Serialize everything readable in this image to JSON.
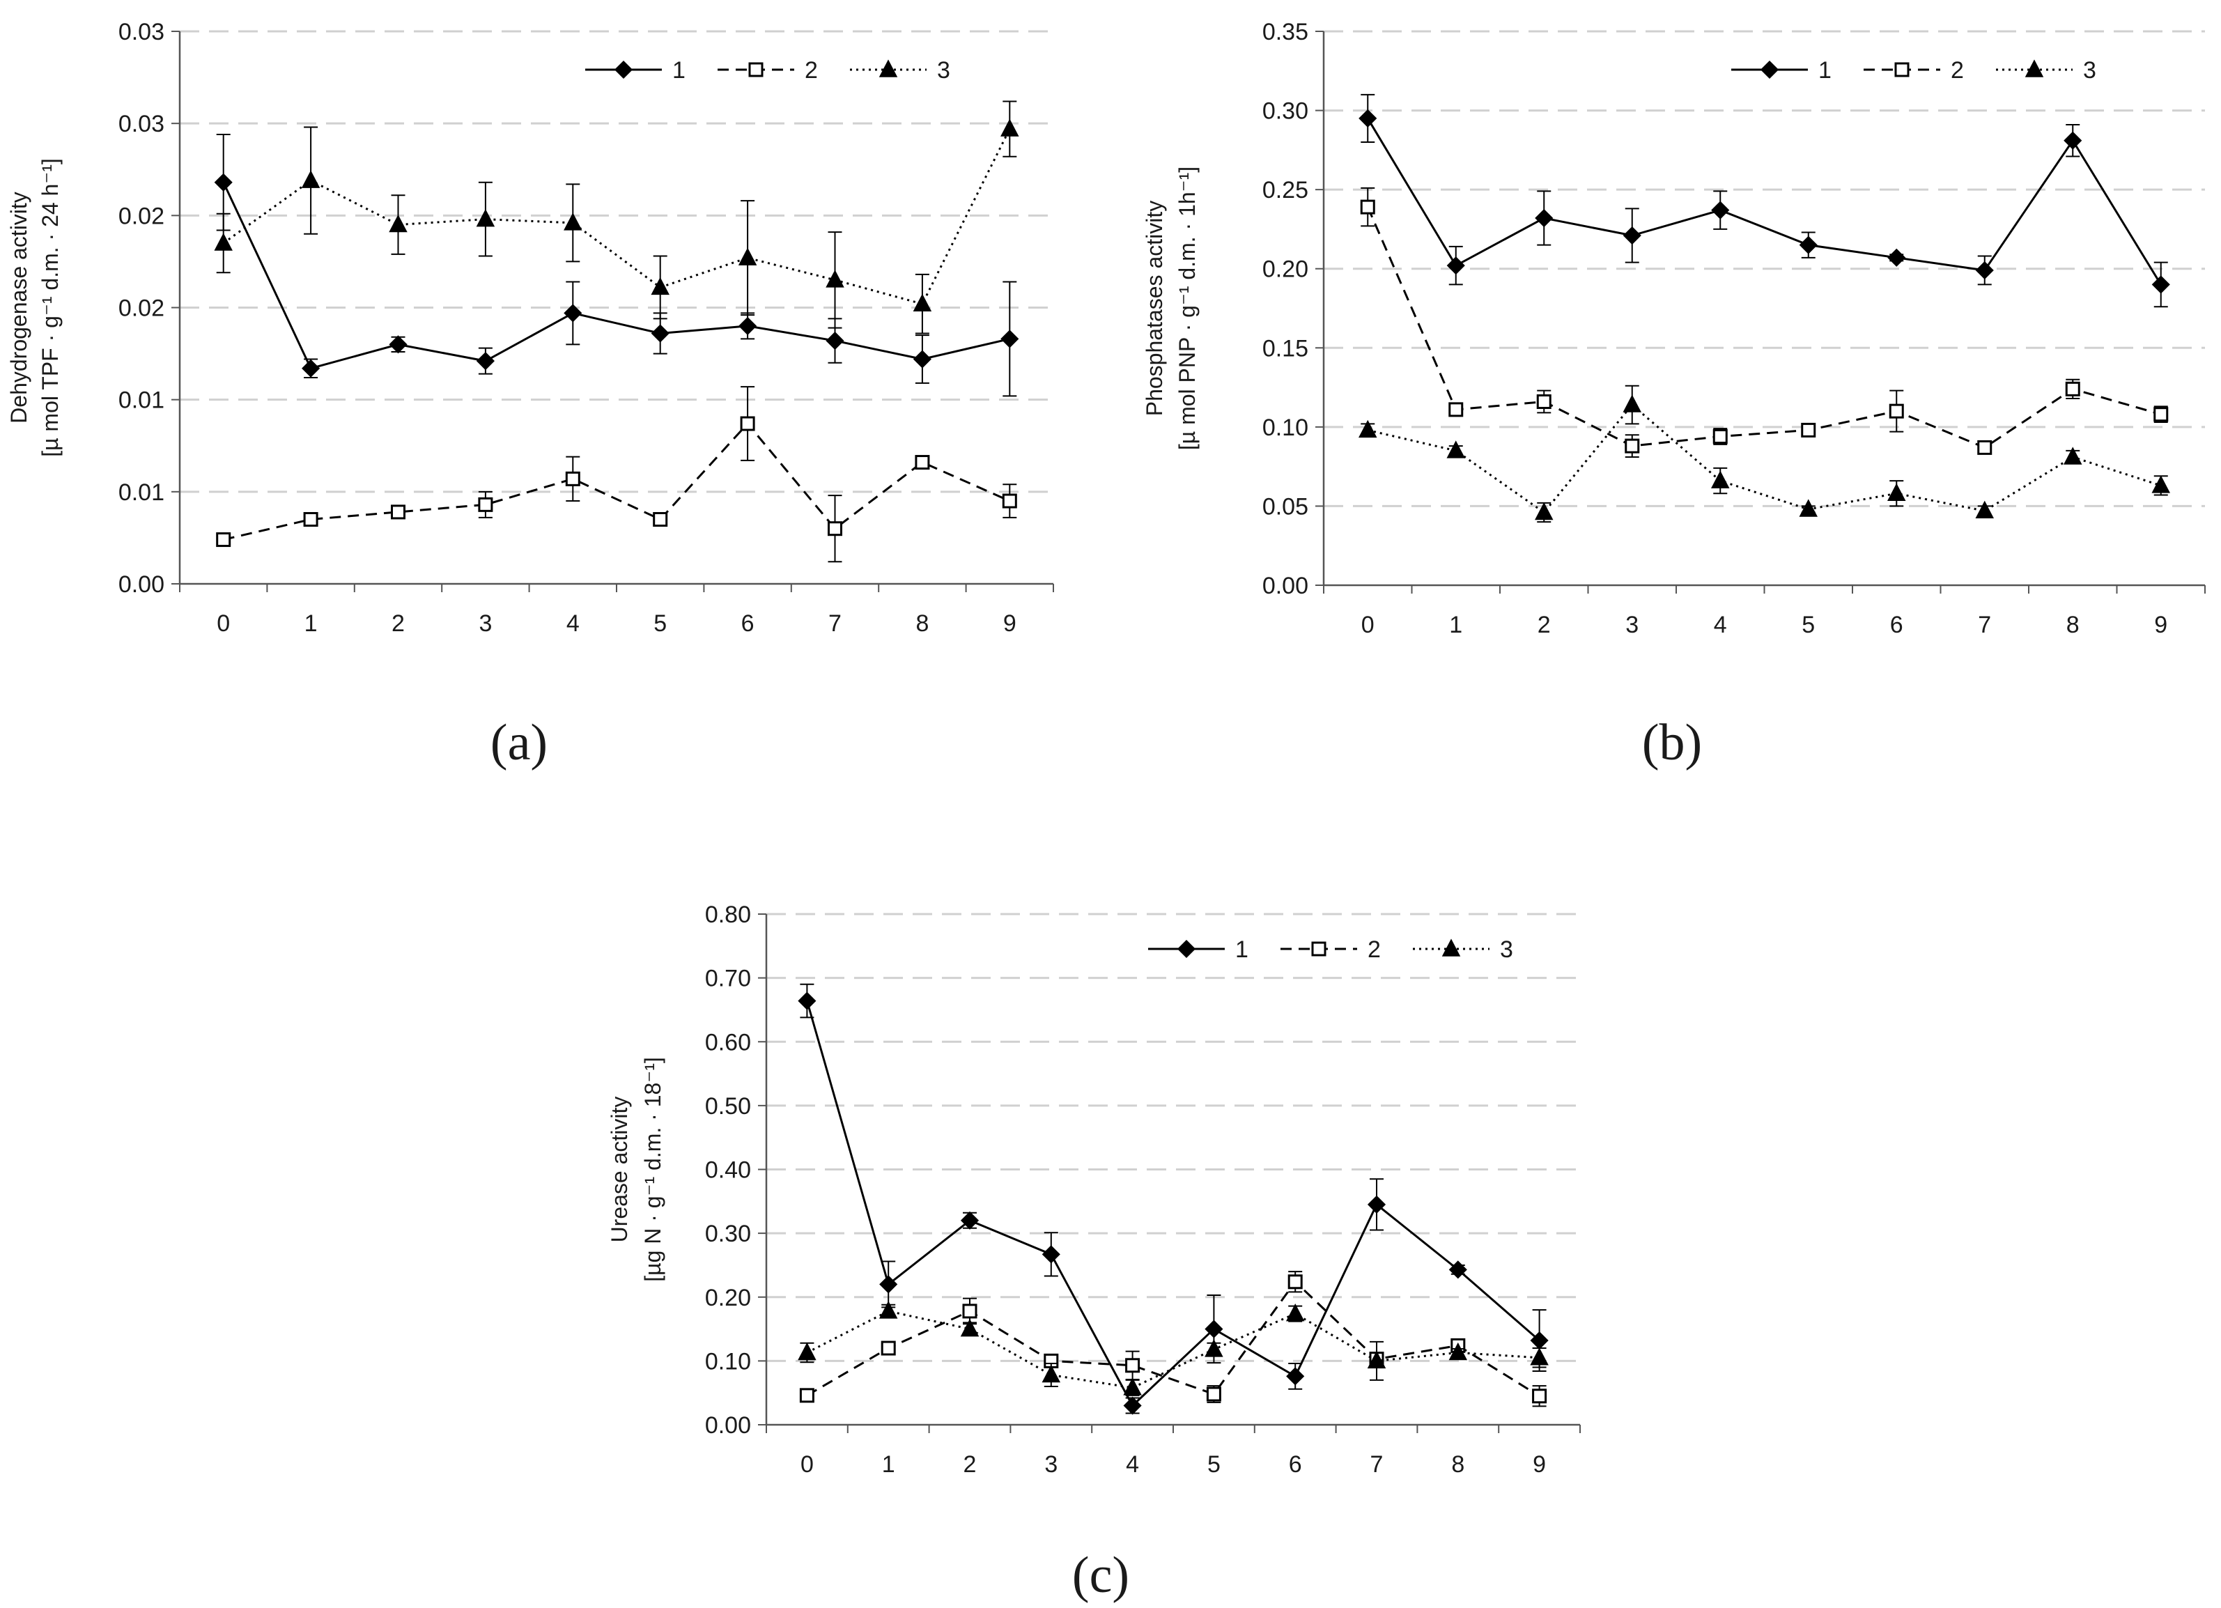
{
  "chart_data": [
    {
      "type": "line",
      "panel_label": "(a)",
      "ylabel_line1": "Dehydrogenase activity",
      "ylabel_line2": "[µ mol TPF · g⁻¹ d.m. · 24 h⁻¹]",
      "categories": [
        "0",
        "1",
        "2",
        "3",
        "4",
        "5",
        "6",
        "7",
        "8",
        "9"
      ],
      "ylim": [
        0,
        0.03
      ],
      "y_tick_values": [
        0,
        0.005,
        0.01,
        0.015,
        0.02,
        0.025,
        0.03
      ],
      "y_tick_labels": [
        "0.00",
        "0.01",
        "0.01",
        "0.02",
        "0.02",
        "0.03",
        "0.03"
      ],
      "grid": true,
      "legend_position": "top-right",
      "series": [
        {
          "name": "1",
          "style": "solid",
          "marker": "diamond-filled",
          "values": [
            0.0218,
            0.0117,
            0.013,
            0.0121,
            0.0147,
            0.0136,
            0.014,
            0.0132,
            0.0122,
            0.0133
          ],
          "errors": [
            0.0026,
            0.0005,
            0.0004,
            0.0007,
            0.0017,
            0.0011,
            0.0007,
            0.0012,
            0.0013,
            0.0031
          ]
        },
        {
          "name": "2",
          "style": "dashed",
          "marker": "square-open",
          "values": [
            0.0024,
            0.0035,
            0.0039,
            0.0043,
            0.0057,
            0.0035,
            0.0087,
            0.003,
            0.0066,
            0.0045
          ],
          "errors": [
            0.0003,
            0.0003,
            0.0003,
            0.0007,
            0.0012,
            0.0002,
            0.002,
            0.0018,
            0.0003,
            0.0009
          ]
        },
        {
          "name": "3",
          "style": "dotted",
          "marker": "triangle-filled",
          "values": [
            0.0185,
            0.0219,
            0.0195,
            0.0198,
            0.0196,
            0.0161,
            0.0177,
            0.0165,
            0.0152,
            0.0247
          ],
          "errors": [
            0.0016,
            0.0029,
            0.0016,
            0.002,
            0.0021,
            0.0017,
            0.0031,
            0.0026,
            0.0016,
            0.0015
          ]
        }
      ]
    },
    {
      "type": "line",
      "panel_label": "(b)",
      "ylabel_line1": "Phosphatases activity",
      "ylabel_line2": "[µ mol PNP · g⁻¹ d.m. · 1h⁻¹]",
      "categories": [
        "0",
        "1",
        "2",
        "3",
        "4",
        "5",
        "6",
        "7",
        "8",
        "9"
      ],
      "ylim": [
        0,
        0.35
      ],
      "y_tick_values": [
        0,
        0.05,
        0.1,
        0.15,
        0.2,
        0.25,
        0.3,
        0.35
      ],
      "y_tick_labels": [
        "0.00",
        "0.05",
        "0.10",
        "0.15",
        "0.20",
        "0.25",
        "0.30",
        "0.35"
      ],
      "grid": true,
      "legend_position": "top-right",
      "series": [
        {
          "name": "1",
          "style": "solid",
          "marker": "diamond-filled",
          "values": [
            0.295,
            0.202,
            0.232,
            0.221,
            0.237,
            0.215,
            0.207,
            0.199,
            0.281,
            0.19
          ],
          "errors": [
            0.015,
            0.012,
            0.017,
            0.017,
            0.012,
            0.008,
            0.002,
            0.009,
            0.01,
            0.014
          ]
        },
        {
          "name": "2",
          "style": "dashed",
          "marker": "square-open",
          "values": [
            0.239,
            0.111,
            0.116,
            0.088,
            0.094,
            0.098,
            0.11,
            0.087,
            0.124,
            0.108
          ],
          "errors": [
            0.012,
            0.003,
            0.007,
            0.007,
            0.005,
            0.002,
            0.013,
            0.003,
            0.006,
            0.005
          ]
        },
        {
          "name": "3",
          "style": "dotted",
          "marker": "triangle-filled",
          "values": [
            0.098,
            0.085,
            0.046,
            0.114,
            0.066,
            0.048,
            0.058,
            0.047,
            0.081,
            0.063
          ],
          "errors": [
            0.004,
            0.003,
            0.006,
            0.012,
            0.008,
            0.002,
            0.008,
            0.003,
            0.004,
            0.006
          ]
        }
      ]
    },
    {
      "type": "line",
      "panel_label": "(c)",
      "ylabel_line1": "Urease activity",
      "ylabel_line2": "[µg N · g⁻¹ d.m. · 18⁻¹]",
      "categories": [
        "0",
        "1",
        "2",
        "3",
        "4",
        "5",
        "6",
        "7",
        "8",
        "9"
      ],
      "ylim": [
        0,
        0.8
      ],
      "y_tick_values": [
        0,
        0.1,
        0.2,
        0.3,
        0.4,
        0.5,
        0.6,
        0.7,
        0.8
      ],
      "y_tick_labels": [
        "0.00",
        "0.10",
        "0.20",
        "0.30",
        "0.40",
        "0.50",
        "0.60",
        "0.70",
        "0.80"
      ],
      "grid": true,
      "legend_position": "top-right",
      "series": [
        {
          "name": "1",
          "style": "solid",
          "marker": "diamond-filled",
          "values": [
            0.664,
            0.22,
            0.32,
            0.267,
            0.03,
            0.15,
            0.076,
            0.345,
            0.243,
            0.132
          ],
          "errors": [
            0.026,
            0.036,
            0.012,
            0.034,
            0.012,
            0.053,
            0.02,
            0.04,
            0.007,
            0.048
          ]
        },
        {
          "name": "2",
          "style": "dashed",
          "marker": "square-open",
          "values": [
            0.046,
            0.12,
            0.178,
            0.1,
            0.093,
            0.048,
            0.224,
            0.103,
            0.124,
            0.045
          ],
          "errors": [
            0.004,
            0.005,
            0.02,
            0.008,
            0.022,
            0.013,
            0.016,
            0.008,
            0.008,
            0.016
          ]
        },
        {
          "name": "3",
          "style": "dotted",
          "marker": "triangle-filled",
          "values": [
            0.113,
            0.178,
            0.15,
            0.078,
            0.058,
            0.118,
            0.174,
            0.1,
            0.113,
            0.105
          ],
          "errors": [
            0.015,
            0.01,
            0.01,
            0.018,
            0.012,
            0.01,
            0.012,
            0.03,
            0.006,
            0.015
          ]
        }
      ]
    }
  ]
}
